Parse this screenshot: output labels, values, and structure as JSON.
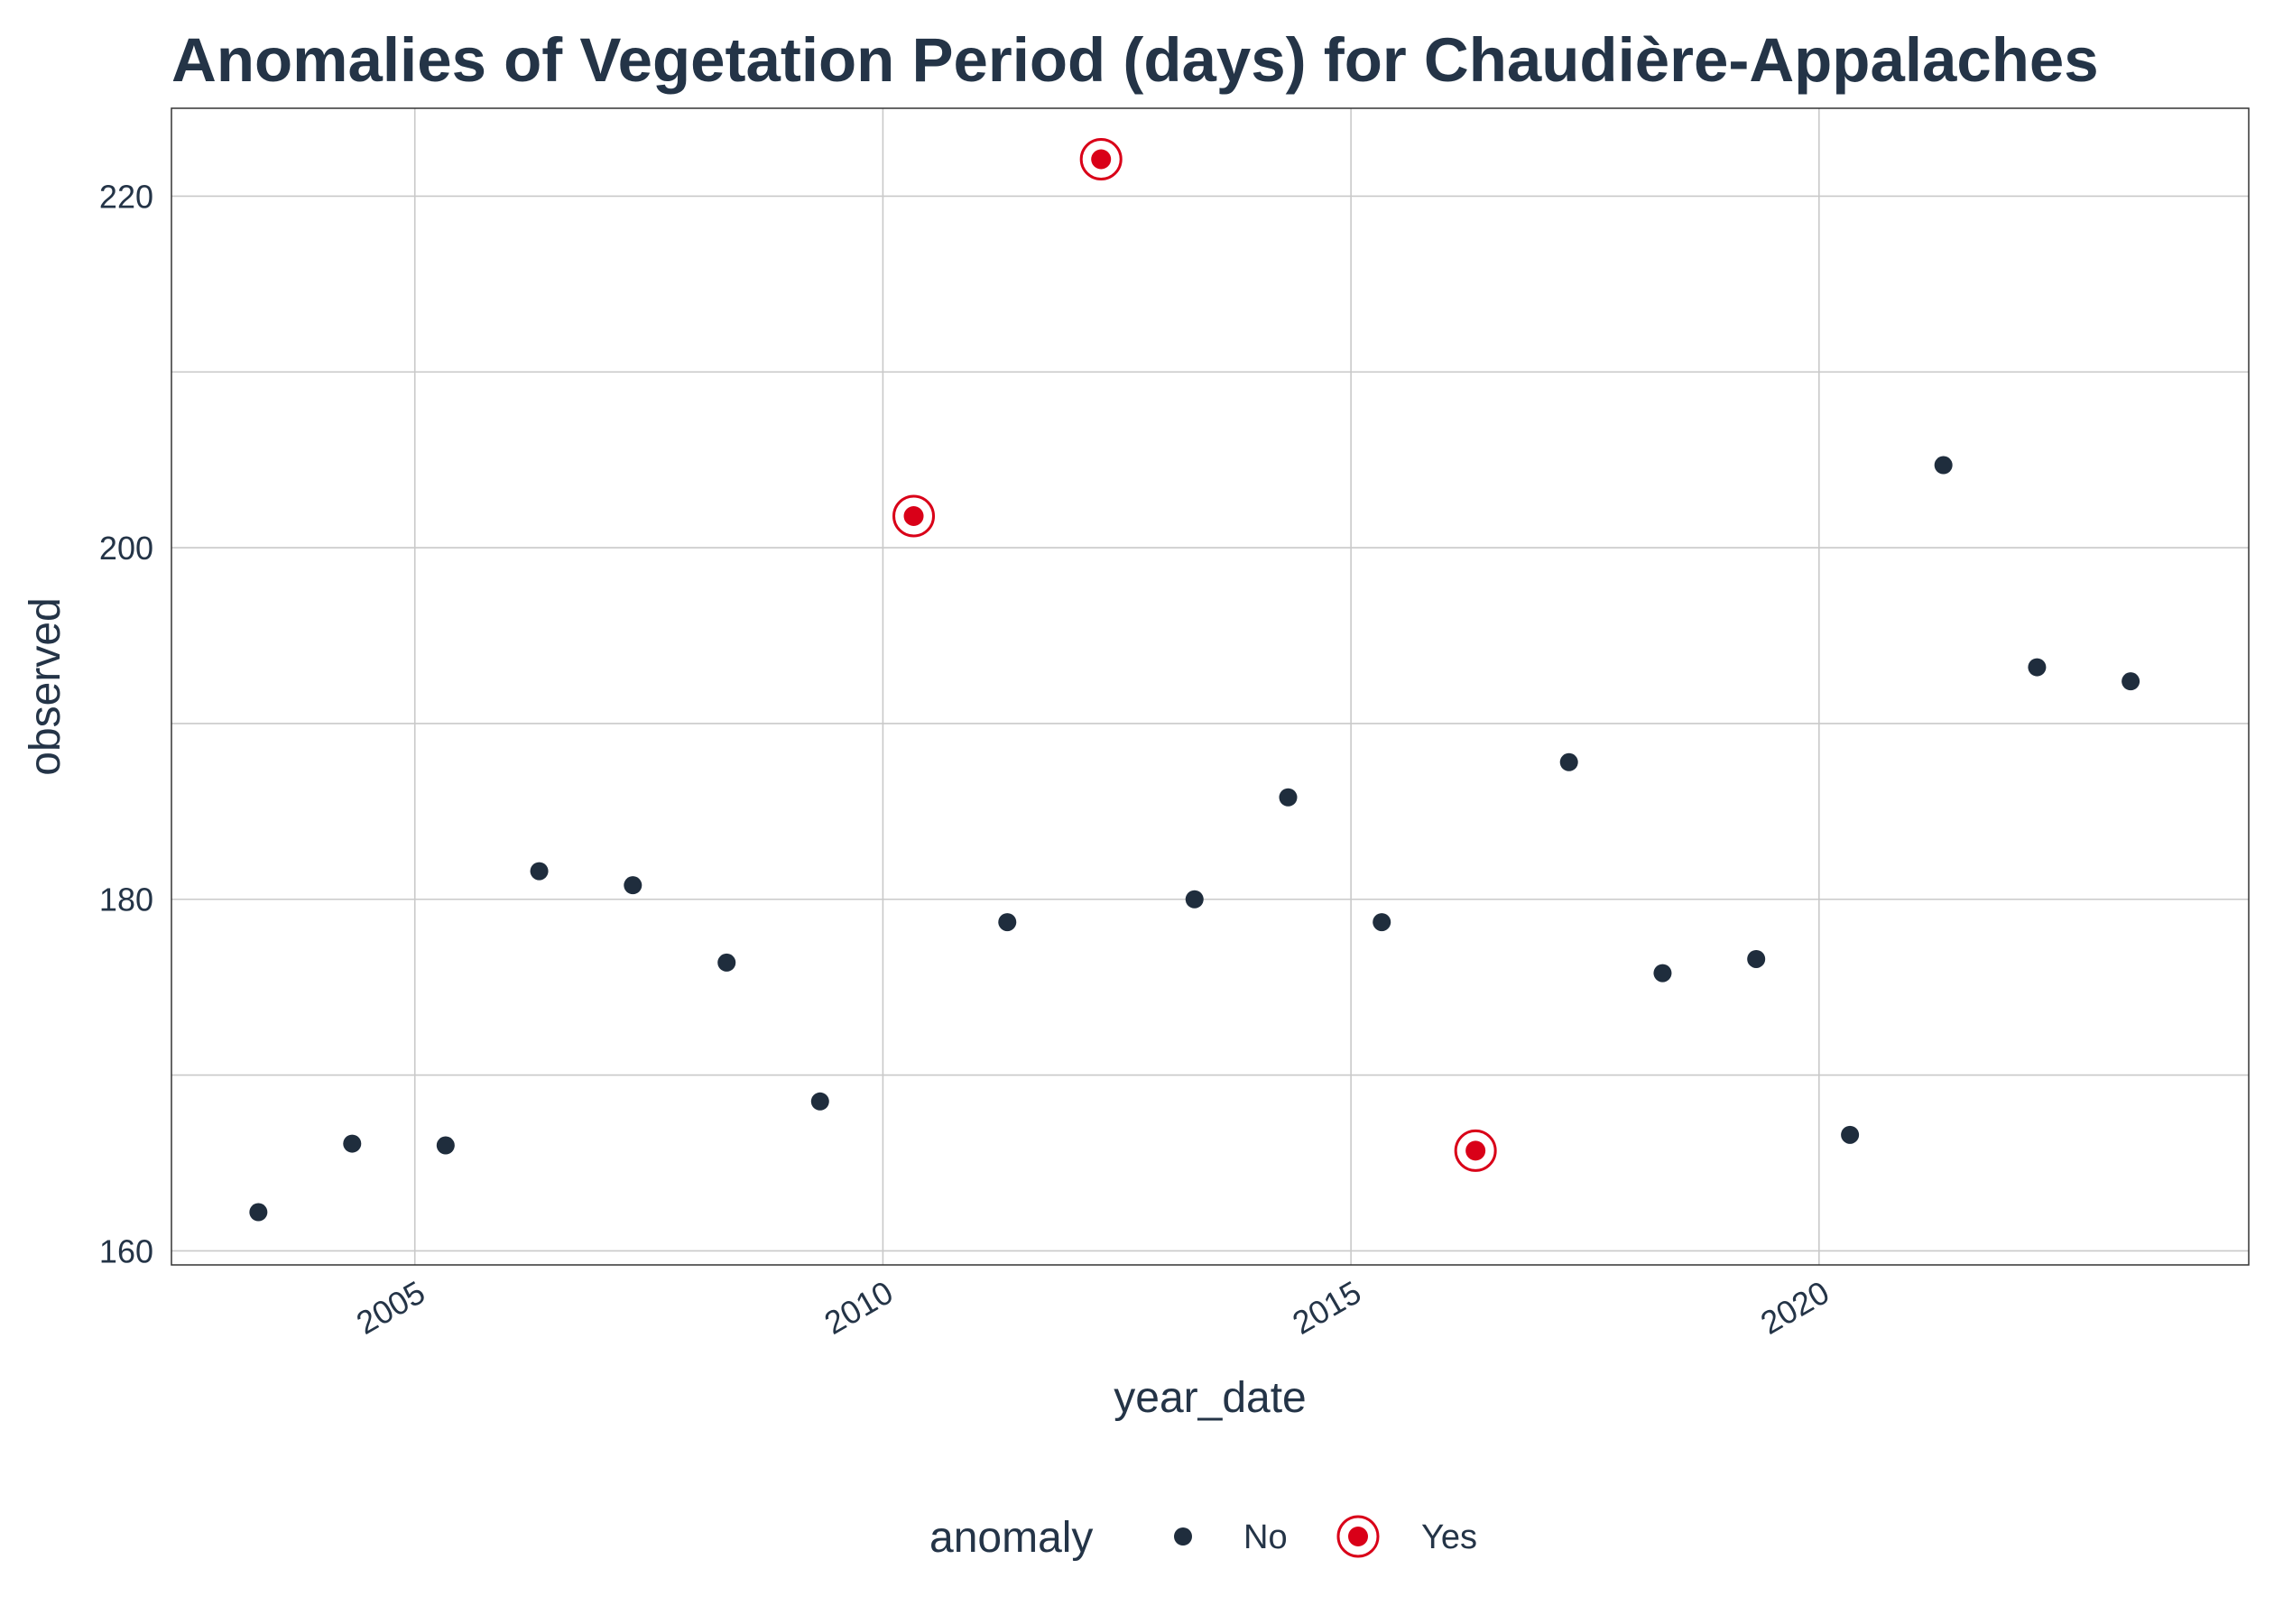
{
  "chart_data": {
    "type": "scatter",
    "title": "Anomalies of Vegetation Period (days) for Chaudière-Appalaches",
    "xlabel": "year_date",
    "ylabel": "observed",
    "x_ticks": [
      "2005",
      "2010",
      "2015",
      "2020"
    ],
    "y_ticks": [
      "160",
      "180",
      "200",
      "220"
    ],
    "xlim": [
      "2002-05-27",
      "2024-08-04"
    ],
    "ylim": [
      159.2,
      225.0
    ],
    "grid": true,
    "legend": {
      "title": "anomaly",
      "position": "bottom",
      "entries": [
        "No",
        "Yes"
      ]
    },
    "colors": {
      "no": "#1f2d3d",
      "yes": "#d90018",
      "grid": "#c9c9c9",
      "title": "#243447"
    },
    "series": [
      {
        "name": "No",
        "points": [
          {
            "x": "2003-05-01",
            "y": 162.2
          },
          {
            "x": "2004-05-01",
            "y": 166.1
          },
          {
            "x": "2005-05-01",
            "y": 166.0
          },
          {
            "x": "2006-05-01",
            "y": 181.6
          },
          {
            "x": "2007-05-01",
            "y": 180.8
          },
          {
            "x": "2008-05-01",
            "y": 176.4
          },
          {
            "x": "2009-05-01",
            "y": 168.5
          },
          {
            "x": "2011-05-01",
            "y": 178.7
          },
          {
            "x": "2013-05-01",
            "y": 180.0
          },
          {
            "x": "2014-05-01",
            "y": 185.8
          },
          {
            "x": "2015-05-01",
            "y": 178.7
          },
          {
            "x": "2017-05-01",
            "y": 187.8
          },
          {
            "x": "2018-05-01",
            "y": 175.8
          },
          {
            "x": "2019-05-01",
            "y": 176.6
          },
          {
            "x": "2020-05-01",
            "y": 166.6
          },
          {
            "x": "2021-05-01",
            "y": 204.7
          },
          {
            "x": "2022-05-01",
            "y": 193.2
          },
          {
            "x": "2023-05-01",
            "y": 192.4
          }
        ]
      },
      {
        "name": "Yes",
        "points": [
          {
            "x": "2010-05-01",
            "y": 201.8
          },
          {
            "x": "2012-05-01",
            "y": 222.1
          },
          {
            "x": "2016-05-01",
            "y": 165.7
          }
        ]
      }
    ]
  }
}
